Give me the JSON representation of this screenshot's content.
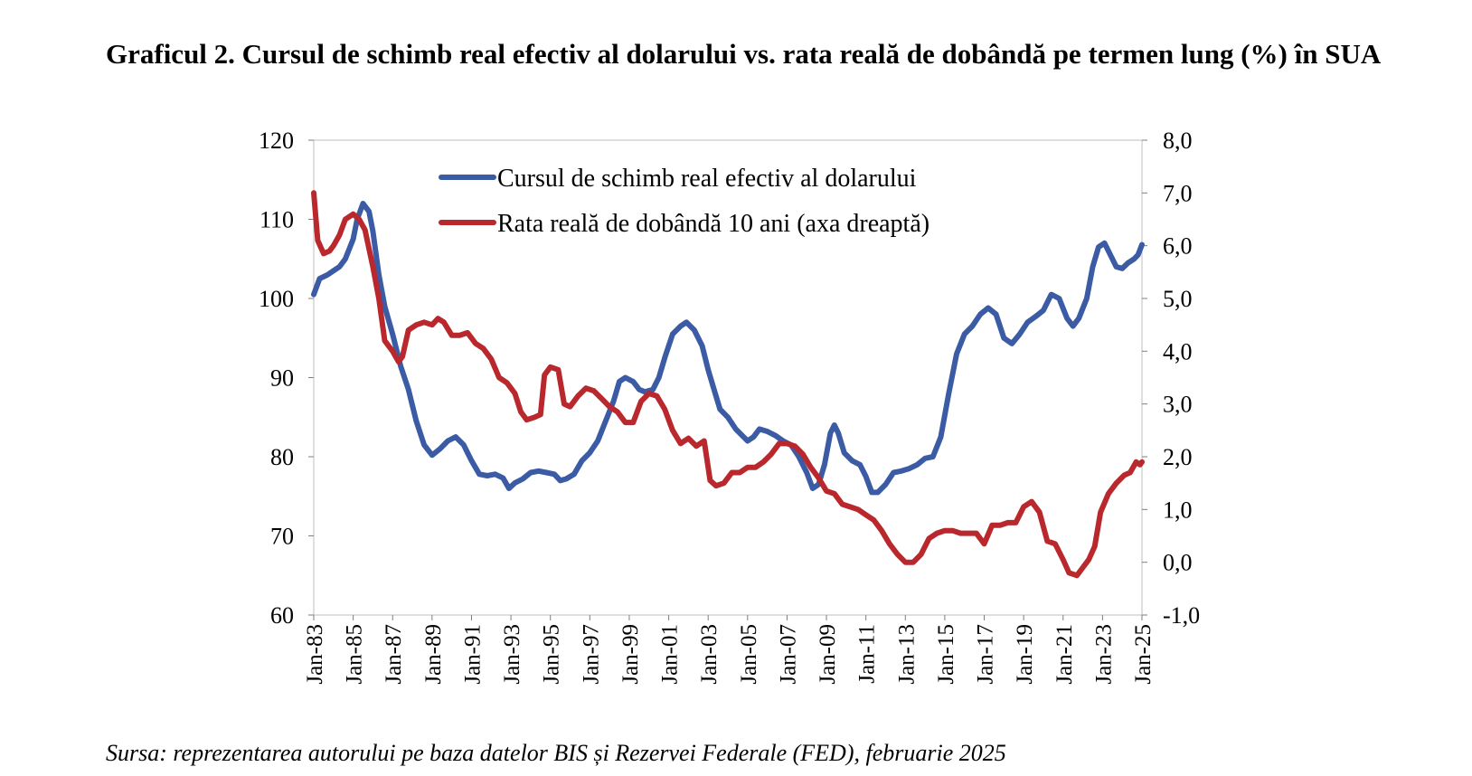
{
  "header": {
    "title": "Graficul 2. Cursul de schimb real efectiv al dolarului vs. rata reală de dobândă pe termen lung (%) în SUA"
  },
  "footer": {
    "source": "Sursa: reprezentarea autorului pe baza datelor BIS și Rezervei Federale (FED), februarie 2025"
  },
  "chart_data": {
    "type": "line",
    "title": "Graficul 2. Cursul de schimb real efectiv al dolarului vs. rata reală de dobândă pe termen lung (%) în SUA",
    "xlabel": "",
    "ylabel": "",
    "y_left": {
      "min": 60,
      "max": 120,
      "ticks": [
        "120",
        "110",
        "100",
        "90",
        "80",
        "70",
        "60"
      ]
    },
    "y_right": {
      "min": -1,
      "max": 8,
      "ticks": [
        "8,0",
        "7,0",
        "6,0",
        "5,0",
        "4,0",
        "3,0",
        "2,0",
        "1,0",
        "0,0",
        "-1,0"
      ]
    },
    "x_range": [
      1983.0,
      2025.0
    ],
    "x_ticks": [
      "Jan-83",
      "Jan-85",
      "Jan-87",
      "Jan-89",
      "Jan-91",
      "Jan-93",
      "Jan-95",
      "Jan-97",
      "Jan-99",
      "Jan-01",
      "Jan-03",
      "Jan-05",
      "Jan-07",
      "Jan-09",
      "Jan-11",
      "Jan-13",
      "Jan-15",
      "Jan-17",
      "Jan-19",
      "Jan-21",
      "Jan-23",
      "Jan-25"
    ],
    "grid": false,
    "legend_position": "top-center",
    "series": [
      {
        "name": "Cursul de schimb real efectiv al dolarului",
        "axis": "left",
        "color": "#3b5ba5",
        "points": [
          [
            1983.0,
            100.5
          ],
          [
            1983.3,
            102.5
          ],
          [
            1983.7,
            103.0
          ],
          [
            1984.0,
            103.5
          ],
          [
            1984.3,
            104.0
          ],
          [
            1984.6,
            105.0
          ],
          [
            1985.0,
            107.5
          ],
          [
            1985.2,
            110.0
          ],
          [
            1985.5,
            112.0
          ],
          [
            1985.8,
            111.0
          ],
          [
            1986.0,
            108.5
          ],
          [
            1986.3,
            103.0
          ],
          [
            1986.6,
            99.0
          ],
          [
            1987.0,
            95.5
          ],
          [
            1987.4,
            91.5
          ],
          [
            1987.8,
            88.5
          ],
          [
            1988.2,
            84.5
          ],
          [
            1988.6,
            81.5
          ],
          [
            1989.0,
            80.2
          ],
          [
            1989.4,
            81.0
          ],
          [
            1989.8,
            82.0
          ],
          [
            1990.2,
            82.5
          ],
          [
            1990.6,
            81.5
          ],
          [
            1991.0,
            79.5
          ],
          [
            1991.4,
            77.8
          ],
          [
            1991.8,
            77.6
          ],
          [
            1992.2,
            77.8
          ],
          [
            1992.6,
            77.3
          ],
          [
            1992.9,
            76.0
          ],
          [
            1993.2,
            76.7
          ],
          [
            1993.6,
            77.2
          ],
          [
            1994.0,
            78.0
          ],
          [
            1994.4,
            78.2
          ],
          [
            1994.8,
            78.0
          ],
          [
            1995.2,
            77.8
          ],
          [
            1995.5,
            77.0
          ],
          [
            1995.8,
            77.2
          ],
          [
            1996.2,
            77.8
          ],
          [
            1996.6,
            79.5
          ],
          [
            1997.0,
            80.5
          ],
          [
            1997.4,
            82.0
          ],
          [
            1997.8,
            84.5
          ],
          [
            1998.2,
            87.0
          ],
          [
            1998.5,
            89.5
          ],
          [
            1998.8,
            90.0
          ],
          [
            1999.2,
            89.5
          ],
          [
            1999.5,
            88.5
          ],
          [
            1999.8,
            88.2
          ],
          [
            2000.2,
            88.5
          ],
          [
            2000.5,
            90.0
          ],
          [
            2000.8,
            92.5
          ],
          [
            2001.2,
            95.5
          ],
          [
            2001.6,
            96.5
          ],
          [
            2001.9,
            97.0
          ],
          [
            2002.3,
            96.0
          ],
          [
            2002.7,
            94.0
          ],
          [
            2003.0,
            91.0
          ],
          [
            2003.3,
            88.5
          ],
          [
            2003.6,
            86.0
          ],
          [
            2004.0,
            85.0
          ],
          [
            2004.4,
            83.5
          ],
          [
            2004.8,
            82.5
          ],
          [
            2005.0,
            82.0
          ],
          [
            2005.3,
            82.5
          ],
          [
            2005.6,
            83.5
          ],
          [
            2006.0,
            83.2
          ],
          [
            2006.4,
            82.7
          ],
          [
            2006.8,
            82.0
          ],
          [
            2007.2,
            81.5
          ],
          [
            2007.6,
            80.0
          ],
          [
            2008.0,
            78.0
          ],
          [
            2008.3,
            76.0
          ],
          [
            2008.6,
            76.5
          ],
          [
            2008.9,
            79.0
          ],
          [
            2009.2,
            83.0
          ],
          [
            2009.4,
            84.0
          ],
          [
            2009.6,
            83.0
          ],
          [
            2009.9,
            80.5
          ],
          [
            2010.3,
            79.5
          ],
          [
            2010.7,
            79.0
          ],
          [
            2011.0,
            77.5
          ],
          [
            2011.3,
            75.5
          ],
          [
            2011.6,
            75.5
          ],
          [
            2012.0,
            76.5
          ],
          [
            2012.4,
            78.0
          ],
          [
            2012.8,
            78.2
          ],
          [
            2013.2,
            78.5
          ],
          [
            2013.6,
            79.0
          ],
          [
            2014.0,
            79.8
          ],
          [
            2014.4,
            80.0
          ],
          [
            2014.8,
            82.5
          ],
          [
            2015.2,
            88.0
          ],
          [
            2015.6,
            93.0
          ],
          [
            2016.0,
            95.5
          ],
          [
            2016.4,
            96.5
          ],
          [
            2016.8,
            98.0
          ],
          [
            2017.2,
            98.8
          ],
          [
            2017.6,
            98.0
          ],
          [
            2018.0,
            95.0
          ],
          [
            2018.4,
            94.3
          ],
          [
            2018.8,
            95.5
          ],
          [
            2019.2,
            97.0
          ],
          [
            2019.6,
            97.7
          ],
          [
            2020.0,
            98.5
          ],
          [
            2020.4,
            100.5
          ],
          [
            2020.8,
            100.0
          ],
          [
            2021.2,
            97.5
          ],
          [
            2021.5,
            96.5
          ],
          [
            2021.8,
            97.5
          ],
          [
            2022.2,
            100.0
          ],
          [
            2022.5,
            104.0
          ],
          [
            2022.8,
            106.5
          ],
          [
            2023.1,
            107.0
          ],
          [
            2023.4,
            105.5
          ],
          [
            2023.7,
            104.0
          ],
          [
            2024.0,
            103.8
          ],
          [
            2024.3,
            104.5
          ],
          [
            2024.6,
            105.0
          ],
          [
            2024.8,
            105.5
          ],
          [
            2025.0,
            106.8
          ]
        ]
      },
      {
        "name": "Rata reală de dobândă 10 ani (axa dreaptă)",
        "axis": "right",
        "color": "#b8282d",
        "points": [
          [
            1983.0,
            7.0
          ],
          [
            1983.2,
            6.1
          ],
          [
            1983.5,
            5.85
          ],
          [
            1983.8,
            5.9
          ],
          [
            1984.0,
            6.0
          ],
          [
            1984.3,
            6.2
          ],
          [
            1984.6,
            6.5
          ],
          [
            1985.0,
            6.6
          ],
          [
            1985.3,
            6.5
          ],
          [
            1985.6,
            6.3
          ],
          [
            1986.0,
            5.6
          ],
          [
            1986.3,
            5.0
          ],
          [
            1986.6,
            4.2
          ],
          [
            1987.0,
            4.0
          ],
          [
            1987.3,
            3.8
          ],
          [
            1987.5,
            3.9
          ],
          [
            1987.8,
            4.4
          ],
          [
            1988.2,
            4.5
          ],
          [
            1988.6,
            4.55
          ],
          [
            1989.0,
            4.5
          ],
          [
            1989.3,
            4.62
          ],
          [
            1989.6,
            4.55
          ],
          [
            1990.0,
            4.3
          ],
          [
            1990.4,
            4.3
          ],
          [
            1990.8,
            4.35
          ],
          [
            1991.2,
            4.15
          ],
          [
            1991.6,
            4.05
          ],
          [
            1992.0,
            3.85
          ],
          [
            1992.4,
            3.5
          ],
          [
            1992.8,
            3.4
          ],
          [
            1993.2,
            3.2
          ],
          [
            1993.5,
            2.85
          ],
          [
            1993.8,
            2.7
          ],
          [
            1994.2,
            2.75
          ],
          [
            1994.5,
            2.8
          ],
          [
            1994.7,
            3.55
          ],
          [
            1995.0,
            3.7
          ],
          [
            1995.4,
            3.65
          ],
          [
            1995.7,
            3.0
          ],
          [
            1996.0,
            2.95
          ],
          [
            1996.4,
            3.15
          ],
          [
            1996.8,
            3.3
          ],
          [
            1997.2,
            3.25
          ],
          [
            1997.6,
            3.1
          ],
          [
            1998.0,
            2.95
          ],
          [
            1998.4,
            2.85
          ],
          [
            1998.8,
            2.65
          ],
          [
            1999.2,
            2.65
          ],
          [
            1999.6,
            3.05
          ],
          [
            2000.0,
            3.2
          ],
          [
            2000.4,
            3.15
          ],
          [
            2000.8,
            2.9
          ],
          [
            2001.2,
            2.5
          ],
          [
            2001.6,
            2.25
          ],
          [
            2002.0,
            2.35
          ],
          [
            2002.4,
            2.2
          ],
          [
            2002.8,
            2.3
          ],
          [
            2003.1,
            1.55
          ],
          [
            2003.4,
            1.45
          ],
          [
            2003.8,
            1.5
          ],
          [
            2004.2,
            1.7
          ],
          [
            2004.6,
            1.7
          ],
          [
            2005.0,
            1.8
          ],
          [
            2005.4,
            1.8
          ],
          [
            2005.8,
            1.9
          ],
          [
            2006.2,
            2.05
          ],
          [
            2006.6,
            2.25
          ],
          [
            2007.0,
            2.25
          ],
          [
            2007.4,
            2.2
          ],
          [
            2007.8,
            2.05
          ],
          [
            2008.2,
            1.8
          ],
          [
            2008.6,
            1.6
          ],
          [
            2009.0,
            1.35
          ],
          [
            2009.4,
            1.3
          ],
          [
            2009.8,
            1.1
          ],
          [
            2010.2,
            1.05
          ],
          [
            2010.6,
            1.0
          ],
          [
            2011.0,
            0.9
          ],
          [
            2011.4,
            0.8
          ],
          [
            2011.8,
            0.6
          ],
          [
            2012.2,
            0.35
          ],
          [
            2012.6,
            0.15
          ],
          [
            2013.0,
            0.0
          ],
          [
            2013.4,
            0.0
          ],
          [
            2013.8,
            0.15
          ],
          [
            2014.2,
            0.45
          ],
          [
            2014.6,
            0.55
          ],
          [
            2015.0,
            0.6
          ],
          [
            2015.4,
            0.6
          ],
          [
            2015.8,
            0.55
          ],
          [
            2016.2,
            0.55
          ],
          [
            2016.6,
            0.55
          ],
          [
            2017.0,
            0.35
          ],
          [
            2017.4,
            0.7
          ],
          [
            2017.8,
            0.7
          ],
          [
            2018.2,
            0.75
          ],
          [
            2018.6,
            0.75
          ],
          [
            2019.0,
            1.05
          ],
          [
            2019.4,
            1.15
          ],
          [
            2019.8,
            0.95
          ],
          [
            2020.2,
            0.4
          ],
          [
            2020.6,
            0.35
          ],
          [
            2021.0,
            0.05
          ],
          [
            2021.3,
            -0.2
          ],
          [
            2021.7,
            -0.25
          ],
          [
            2022.0,
            -0.1
          ],
          [
            2022.3,
            0.05
          ],
          [
            2022.6,
            0.3
          ],
          [
            2022.9,
            0.95
          ],
          [
            2023.3,
            1.3
          ],
          [
            2023.7,
            1.5
          ],
          [
            2024.1,
            1.65
          ],
          [
            2024.4,
            1.7
          ],
          [
            2024.7,
            1.9
          ],
          [
            2024.9,
            1.85
          ],
          [
            2025.0,
            1.9
          ]
        ]
      }
    ]
  }
}
